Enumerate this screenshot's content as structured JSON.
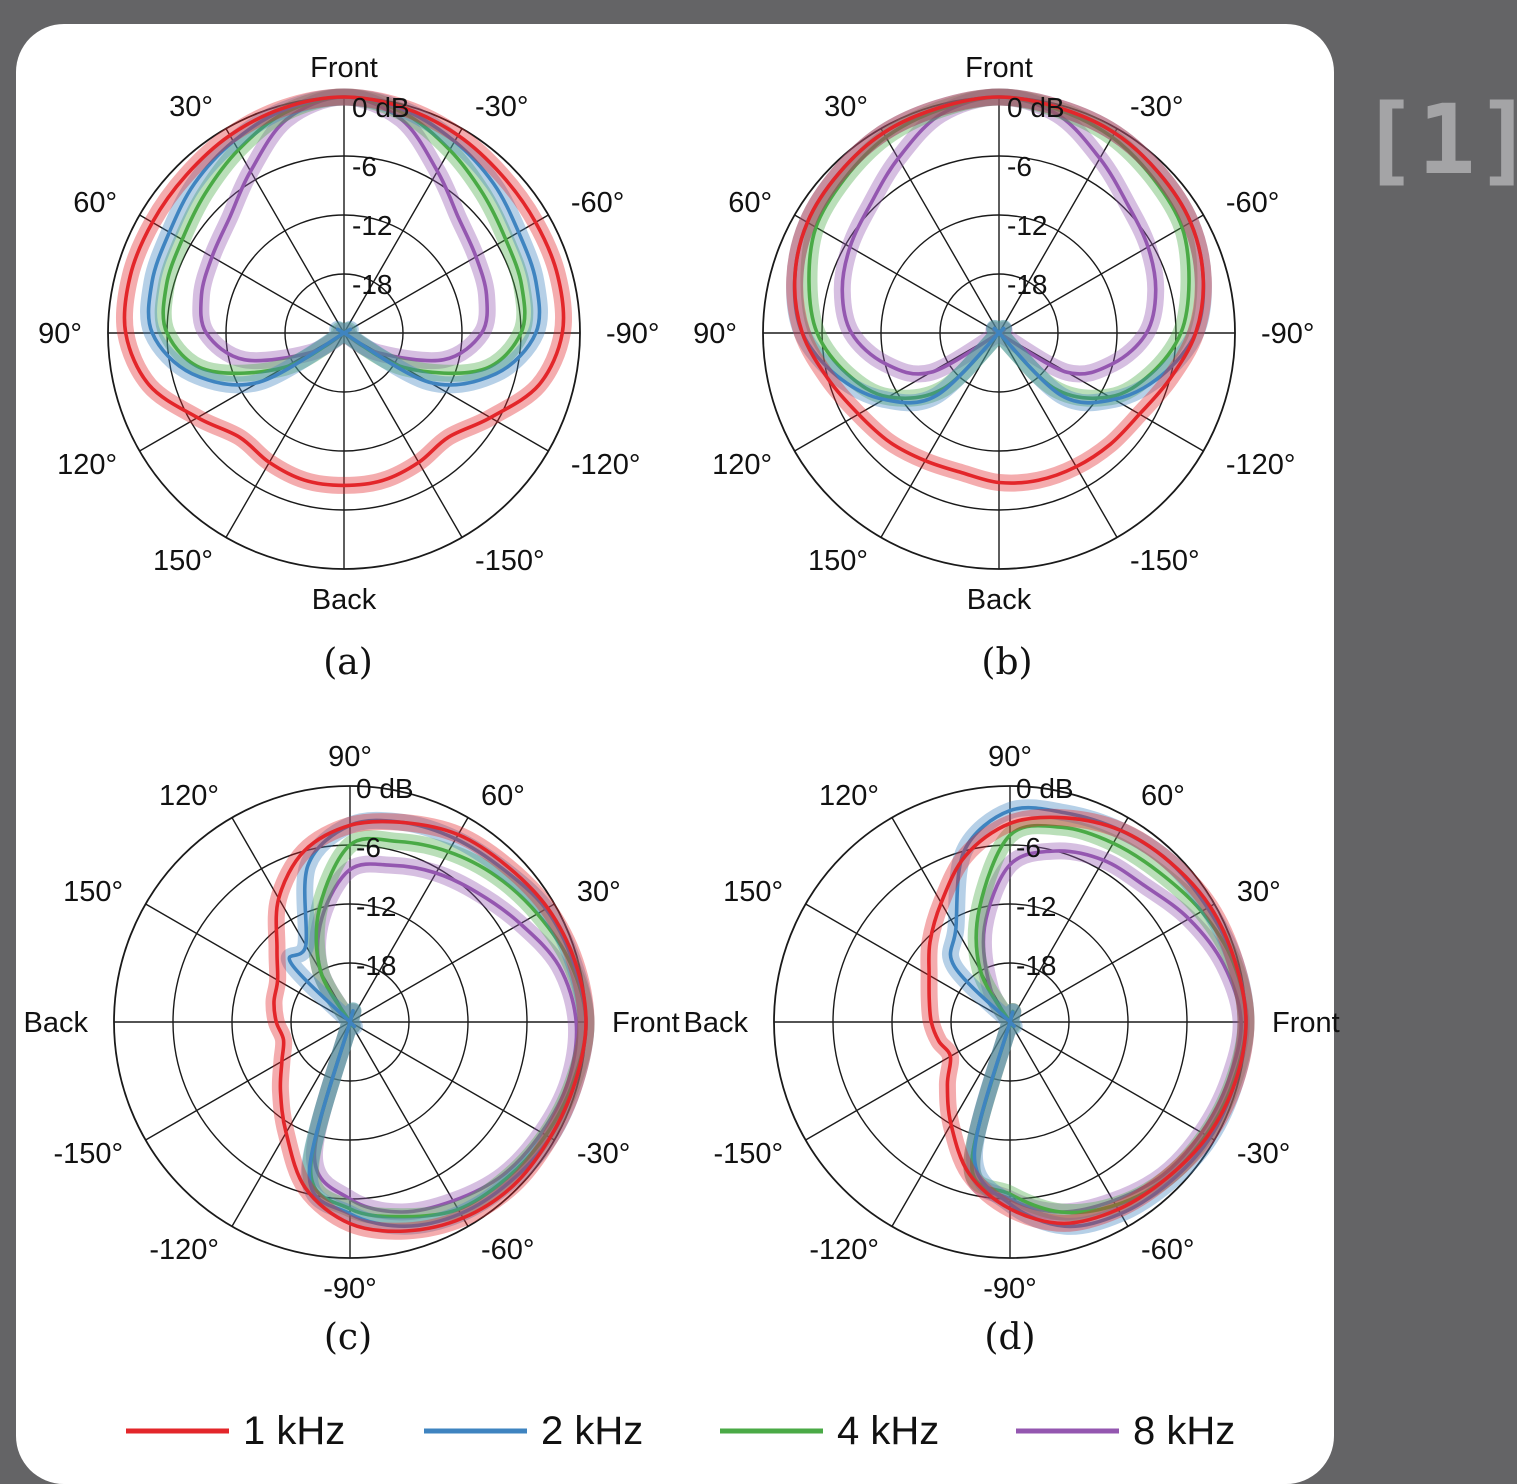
{
  "badge": "[1]",
  "colors": {
    "1 kHz": "#e3262a",
    "2 kHz": "#3f84c0",
    "4 kHz": "#4aaa46",
    "8 kHz": "#9457b0"
  },
  "legend": [
    "1 kHz",
    "2 kHz",
    "4 kHz",
    "8 kHz"
  ],
  "chart_data": [
    {
      "panel": "(a)",
      "type": "polar",
      "unit": "dB",
      "radial_ticks": [
        "0 dB",
        "-6",
        "-12",
        "-18"
      ],
      "radial_range": [
        -24,
        0
      ],
      "angle_labels": {
        "0": "Front",
        "30": "30°",
        "60": "60°",
        "90": "90°",
        "120": "120°",
        "150": "150°",
        "180": "Back",
        "-150": "-150°",
        "-120": "-120°",
        "-90": "-90°",
        "-60": "-60°",
        "-30": "-30°"
      },
      "angles_deg": [
        0,
        15,
        30,
        45,
        60,
        75,
        90,
        105,
        120,
        135,
        150,
        165,
        180,
        195,
        210,
        225,
        240,
        255,
        270,
        285,
        300,
        315,
        330,
        345
      ],
      "series": [
        {
          "name": "1 kHz",
          "values": [
            0,
            -0.3,
            -0.8,
            -1.3,
            -1.5,
            -1.5,
            -1.8,
            -3.5,
            -6.8,
            -9,
            -8.8,
            -8.5,
            -8.5,
            -8.5,
            -8.8,
            -9,
            -6.8,
            -3.5,
            -1.8,
            -1.5,
            -1.5,
            -1.3,
            -0.8,
            -0.3
          ]
        },
        {
          "name": "2 kHz",
          "values": [
            0,
            -0.5,
            -1.5,
            -2.5,
            -3.5,
            -3.8,
            -4.5,
            -8,
            -14,
            -24,
            -24,
            -24,
            -24,
            -24,
            -24,
            -24,
            -14,
            -8,
            -4.5,
            -3.8,
            -3.5,
            -2.5,
            -1.5,
            -0.5
          ]
        },
        {
          "name": "4 kHz",
          "values": [
            0,
            -0.8,
            -2.5,
            -4,
            -5,
            -5.3,
            -6,
            -9.5,
            -17,
            -24,
            -24,
            -24,
            -24,
            -24,
            -24,
            -24,
            -17,
            -9.5,
            -6,
            -5.3,
            -5,
            -4,
            -2.5,
            -0.8
          ]
        },
        {
          "name": "8 kHz",
          "values": [
            0,
            -1.5,
            -5,
            -7.5,
            -8.5,
            -9,
            -10,
            -13.5,
            -20,
            -24,
            -24,
            -24,
            -24,
            -24,
            -24,
            -24,
            -20,
            -13.5,
            -10,
            -9,
            -8.5,
            -7.5,
            -5,
            -1.5
          ]
        }
      ]
    },
    {
      "panel": "(b)",
      "type": "polar",
      "unit": "dB",
      "radial_ticks": [
        "0 dB",
        "-6",
        "-12",
        "-18"
      ],
      "radial_range": [
        -24,
        0
      ],
      "angle_labels": {
        "0": "Front",
        "30": "30°",
        "60": "60°",
        "90": "90°",
        "120": "120°",
        "150": "150°",
        "180": "Back",
        "-150": "-150°",
        "-120": "-120°",
        "-90": "-90°",
        "-60": "-60°",
        "-30": "-30°"
      },
      "angles_deg": [
        0,
        15,
        30,
        45,
        60,
        75,
        90,
        105,
        120,
        135,
        150,
        165,
        180,
        195,
        210,
        225,
        240,
        255,
        270,
        285,
        300,
        315,
        330,
        345
      ],
      "series": [
        {
          "name": "1 kHz",
          "values": [
            0,
            -0.3,
            -0.5,
            -1,
            -1.5,
            -2.5,
            -4,
            -6,
            -7.5,
            -8.3,
            -9,
            -9.3,
            -8.8,
            -8.5,
            -8.3,
            -8,
            -7.5,
            -6,
            -4,
            -2.5,
            -1.5,
            -1,
            -0.5,
            -0.3
          ]
        },
        {
          "name": "2 kHz",
          "values": [
            0,
            -0.3,
            -0.5,
            -1,
            -1.5,
            -2.5,
            -4,
            -7,
            -10.5,
            -15,
            -24,
            -24,
            -24,
            -24,
            -24,
            -15,
            -10.5,
            -7,
            -4,
            -2.5,
            -1.5,
            -1,
            -0.5,
            -0.3
          ]
        },
        {
          "name": "4 kHz",
          "values": [
            0,
            -0.5,
            -1,
            -1.8,
            -2.5,
            -4,
            -5.5,
            -8,
            -11,
            -16,
            -24,
            -24,
            -24,
            -24,
            -24,
            -16,
            -11,
            -8,
            -5.5,
            -4,
            -2.5,
            -1.8,
            -1,
            -0.5
          ]
        },
        {
          "name": "8 kHz",
          "values": [
            0,
            -1,
            -3.5,
            -5.5,
            -6.5,
            -7.5,
            -9,
            -12,
            -16,
            -24,
            -24,
            -24,
            -24,
            -24,
            -24,
            -24,
            -16,
            -12,
            -9,
            -7.5,
            -6.5,
            -5.5,
            -3.5,
            -1
          ]
        }
      ]
    },
    {
      "panel": "(c)",
      "type": "polar",
      "unit": "dB",
      "radial_ticks": [
        "0 dB",
        "-6",
        "-12",
        "-18"
      ],
      "radial_range": [
        -24,
        0
      ],
      "angle_labels": {
        "0": "Front",
        "30": "30°",
        "60": "60°",
        "90": "90°",
        "120": "120°",
        "150": "150°",
        "180": "Back",
        "-150": "-150°",
        "-120": "-120°",
        "-90": "-90°",
        "-60": "-60°",
        "-30": "-30°"
      },
      "angles_deg": [
        0,
        15,
        30,
        45,
        60,
        75,
        90,
        105,
        120,
        135,
        150,
        165,
        180,
        195,
        210,
        225,
        240,
        255,
        270,
        285,
        300,
        315,
        330,
        345
      ],
      "series": [
        {
          "name": "1 kHz",
          "values": [
            0,
            -0.3,
            -0.8,
            -1.5,
            -2,
            -3,
            -4,
            -6,
            -9.5,
            -13.5,
            -15.5,
            -16,
            -16.5,
            -17,
            -16,
            -14,
            -11,
            -6.5,
            -3.5,
            -2,
            -1,
            -0.5,
            -0.5,
            -0.3
          ]
        },
        {
          "name": "2 kHz",
          "values": [
            0,
            -0.5,
            -1,
            -2,
            -2.5,
            -3,
            -4,
            -7.5,
            -15,
            -15.5,
            -24,
            -24,
            -24,
            -24,
            -24,
            -24,
            -24,
            -8,
            -4.5,
            -2.5,
            -1.5,
            -1,
            -0.5,
            -0.3
          ]
        },
        {
          "name": "4 kHz",
          "values": [
            0,
            -0.8,
            -2,
            -3,
            -4,
            -5,
            -6,
            -12,
            -18,
            -24,
            -24,
            -24,
            -24,
            -24,
            -24,
            -24,
            -24,
            -8.5,
            -5,
            -3.5,
            -2,
            -1.5,
            -1,
            -0.5
          ]
        },
        {
          "name": "8 kHz",
          "values": [
            -1,
            -2,
            -4,
            -5.5,
            -6.5,
            -7.5,
            -8.5,
            -13,
            -18,
            -24,
            -24,
            -24,
            -24,
            -24,
            -24,
            -24,
            -24,
            -10,
            -6,
            -4,
            -3,
            -2,
            -1.5,
            -1
          ]
        }
      ]
    },
    {
      "panel": "(d)",
      "type": "polar",
      "unit": "dB",
      "radial_ticks": [
        "0 dB",
        "-6",
        "-12",
        "-18"
      ],
      "radial_range": [
        -24,
        0
      ],
      "angle_labels": {
        "0": "Front",
        "30": "30°",
        "60": "60°",
        "90": "90°",
        "120": "120°",
        "150": "150°",
        "180": "Back",
        "-150": "-150°",
        "-120": "-120°",
        "-90": "-90°",
        "-60": "-60°",
        "-30": "-30°"
      },
      "angles_deg": [
        0,
        15,
        30,
        45,
        60,
        75,
        90,
        105,
        120,
        135,
        150,
        165,
        180,
        195,
        210,
        225,
        240,
        255,
        270,
        285,
        300,
        315,
        330,
        345
      ],
      "series": [
        {
          "name": "1 kHz",
          "values": [
            0,
            -0.3,
            -0.5,
            -1,
            -1.5,
            -2.5,
            -3.8,
            -6.5,
            -10,
            -12.5,
            -14.5,
            -15.5,
            -16,
            -16.5,
            -17,
            -15,
            -12,
            -8,
            -5,
            -2.8,
            -2,
            -1.5,
            -0.8,
            -0.3
          ]
        },
        {
          "name": "2 kHz",
          "values": [
            0,
            -0.3,
            -0.8,
            -1,
            -1.5,
            -2,
            -2.5,
            -6,
            -13,
            -16,
            -24,
            -24,
            -24,
            -24,
            -24,
            -24,
            -24,
            -10,
            -5.5,
            -2.5,
            -1.5,
            -1,
            -0.5,
            -0.3
          ]
        },
        {
          "name": "4 kHz",
          "values": [
            0,
            -0.5,
            -1.5,
            -2.5,
            -3,
            -3.5,
            -5,
            -12,
            -18,
            -24,
            -24,
            -24,
            -24,
            -24,
            -24,
            -24,
            -24,
            -9,
            -6.5,
            -4,
            -2.5,
            -1.5,
            -1,
            -0.5
          ]
        },
        {
          "name": "8 kHz",
          "values": [
            -0.5,
            -1.5,
            -3,
            -4.5,
            -5,
            -6,
            -8,
            -14,
            -20,
            -24,
            -24,
            -24,
            -24,
            -24,
            -24,
            -24,
            -24,
            -9,
            -6,
            -4,
            -3,
            -2,
            -1.5,
            -1
          ]
        }
      ]
    }
  ]
}
